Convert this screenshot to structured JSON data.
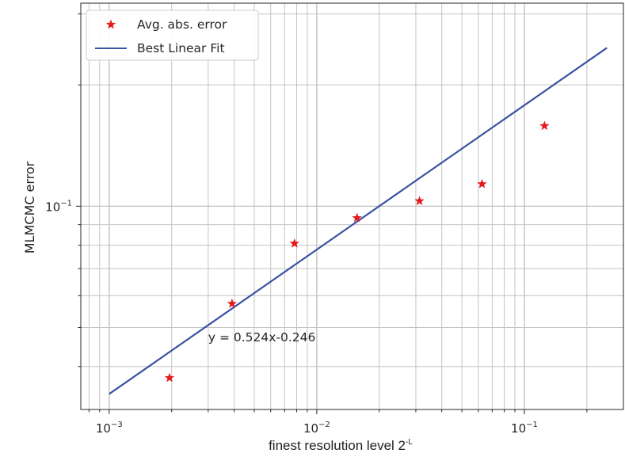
{
  "chart_data": {
    "type": "scatter",
    "xscale": "log",
    "yscale": "log",
    "xlim": [
      0.00073,
      0.3
    ],
    "ylim": [
      0.0313,
      0.319
    ],
    "grid": true,
    "xlabel": "finest resolution level 2",
    "xlabel_sup": "-L",
    "ylabel": "MLMCMC error",
    "x_ticks": [
      {
        "value": 0.001,
        "base": "10",
        "exp": "−3"
      },
      {
        "value": 0.01,
        "base": "10",
        "exp": "−2"
      },
      {
        "value": 0.1,
        "base": "10",
        "exp": "−1"
      }
    ],
    "y_ticks": [
      {
        "value": 0.1,
        "base": "10",
        "exp": "−1"
      }
    ],
    "series": [
      {
        "name": "Avg. abs. error",
        "kind": "scatter",
        "marker": "star",
        "color": "#e41a1c",
        "x": [
          0.001953,
          0.003906,
          0.007813,
          0.015625,
          0.03125,
          0.0625,
          0.125
        ],
        "y": [
          0.0375,
          0.0573,
          0.0808,
          0.0935,
          0.103,
          0.1135,
          0.1582
        ]
      },
      {
        "name": "Best Linear Fit",
        "kind": "line",
        "color": "#3a52a0",
        "x": [
          0.001,
          0.25
        ],
        "y": [
          0.0342,
          0.2472
        ]
      }
    ],
    "legend": {
      "position": "top-left"
    },
    "annotation": {
      "text": "y = 0.524x-0.246",
      "x": 0.003,
      "y": 0.0462
    }
  }
}
